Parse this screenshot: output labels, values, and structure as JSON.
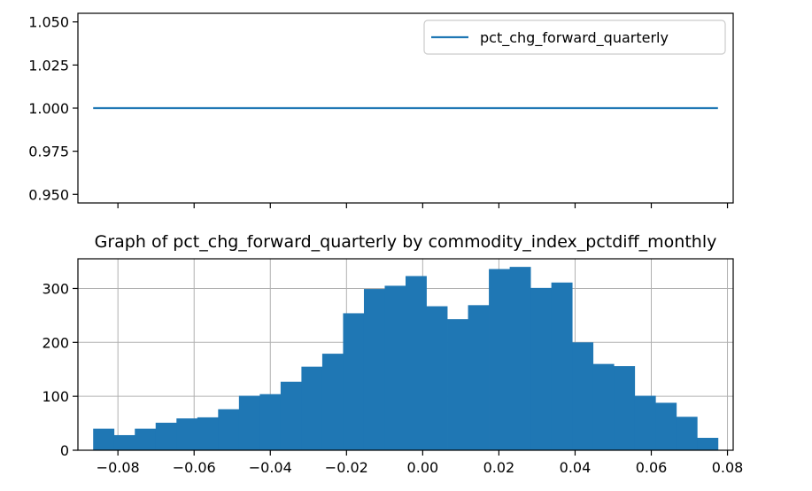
{
  "chart_data": [
    {
      "type": "line",
      "title": "",
      "xlabel": "",
      "ylabel": "",
      "xlim": [
        -0.0905,
        0.0815
      ],
      "ylim": [
        0.945,
        1.055
      ],
      "x_ticks": [
        -0.08,
        -0.06,
        -0.04,
        -0.02,
        0.0,
        0.02,
        0.04,
        0.06,
        0.08
      ],
      "x_tick_labels_visible": false,
      "y_ticks": [
        0.95,
        0.975,
        1.0,
        1.025,
        1.05
      ],
      "y_tick_labels": [
        "0.950",
        "0.975",
        "1.000",
        "1.025",
        "1.050"
      ],
      "grid": false,
      "legend": "top-right",
      "series": [
        {
          "name": "pct_chg_forward_quarterly",
          "color": "#1f77b4",
          "x": [
            -0.0865,
            0.0775
          ],
          "y": [
            1.0,
            1.0
          ]
        }
      ]
    },
    {
      "type": "bar",
      "subtype": "histogram",
      "title": "Graph of pct_chg_forward_quarterly by commodity_index_pctdiff_monthly",
      "xlabel": "",
      "ylabel": "",
      "xlim": [
        -0.0905,
        0.0815
      ],
      "ylim": [
        0,
        355
      ],
      "x_ticks": [
        -0.08,
        -0.06,
        -0.04,
        -0.02,
        0.0,
        0.02,
        0.04,
        0.06,
        0.08
      ],
      "x_tick_labels": [
        "−0.08",
        "−0.06",
        "−0.04",
        "−0.02",
        "0.00",
        "0.02",
        "0.04",
        "0.06",
        "0.08"
      ],
      "y_ticks": [
        0,
        100,
        200,
        300
      ],
      "y_tick_labels": [
        "0",
        "100",
        "200",
        "300"
      ],
      "grid": true,
      "color": "#1f77b4",
      "bin_range": [
        -0.0865,
        0.0775
      ],
      "values": [
        40,
        28,
        40,
        51,
        59,
        61,
        76,
        101,
        104,
        127,
        155,
        179,
        254,
        299,
        305,
        323,
        267,
        243,
        269,
        336,
        340,
        301,
        311,
        200,
        160,
        156,
        101,
        88,
        62,
        23
      ]
    }
  ]
}
